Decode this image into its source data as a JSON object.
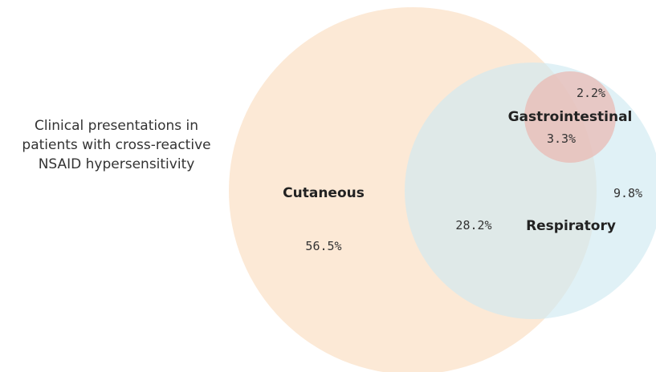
{
  "caption": {
    "lines": [
      "Clinical presentations in",
      "patients with cross-reactive",
      "NSAID hypersensitivity"
    ]
  },
  "venn": {
    "sets": [
      {
        "name": "Cutaneous",
        "color": "#fbe3cc"
      },
      {
        "name": "Respiratory",
        "color": "#cfe9f1"
      },
      {
        "name": "Gastrointestinal",
        "color": "#e9b7b0"
      }
    ],
    "regions": [
      {
        "sets": [
          "Cutaneous"
        ],
        "value": "56.5%"
      },
      {
        "sets": [
          "Cutaneous",
          "Respiratory"
        ],
        "value": "28.2%"
      },
      {
        "sets": [
          "Respiratory"
        ],
        "value": "9.8%"
      },
      {
        "sets": [
          "Cutaneous",
          "Respiratory",
          "Gastrointestinal"
        ],
        "value": "3.3%"
      },
      {
        "sets": [
          "Respiratory",
          "Gastrointestinal"
        ],
        "value": "2.2%"
      }
    ]
  }
}
